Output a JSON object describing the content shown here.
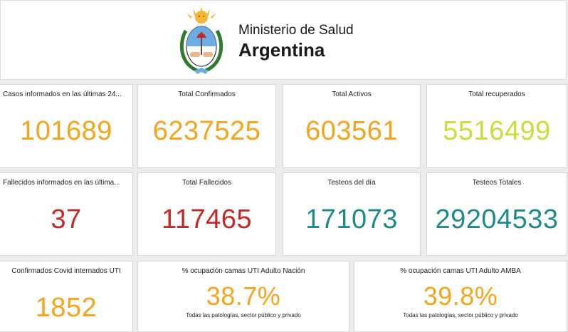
{
  "header": {
    "ministry": "Ministerio de Salud",
    "country": "Argentina",
    "logo_icon": "escudo-nacional-argentina"
  },
  "colors": {
    "orange": "#f7a41d",
    "lime": "#cddc3a",
    "red": "#c62828",
    "teal": "#1e8b8b"
  },
  "cards": [
    {
      "title": "Casos informados en las últimas 24...",
      "value": "101689"
    },
    {
      "title": "Total Confirmados",
      "value": "6237525"
    },
    {
      "title": "Total Activos",
      "value": "603561"
    },
    {
      "title": "Total recuperados",
      "value": "5516499"
    },
    {
      "title": "Fallecidos informados en las última...",
      "value": "37"
    },
    {
      "title": "Total Fallecidos",
      "value": "117465"
    },
    {
      "title": "Testeos del día",
      "value": "171073"
    },
    {
      "title": "Testeos Totales",
      "value": "29204533"
    },
    {
      "title": "Confirmados Covid internados UTI",
      "value": "1852"
    },
    {
      "title": "% ocupación camas UTI Adulto Nación",
      "value": "38.7%",
      "subtitle": "Todas las patologías, sector público y privado"
    },
    {
      "title": "% ocupación camas UTI Adulto AMBA",
      "value": "39.8%",
      "subtitle": "Todas las patologías, sector público y privado"
    }
  ]
}
